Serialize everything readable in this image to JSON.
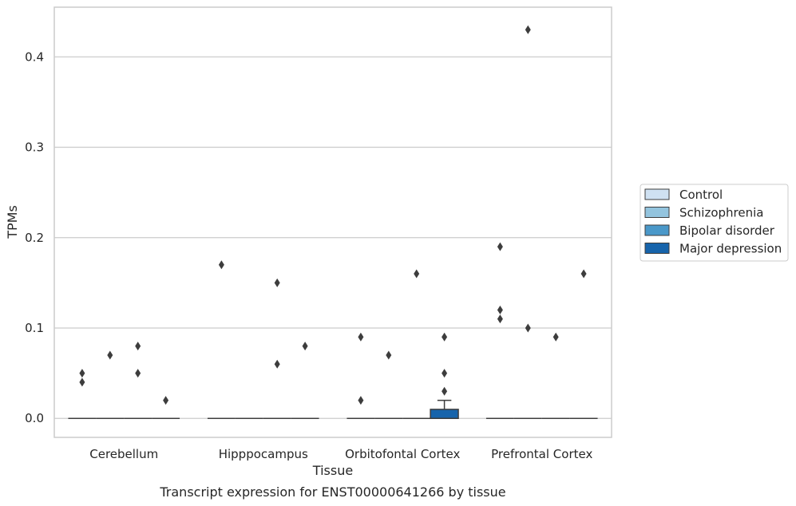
{
  "chart_data": {
    "type": "box",
    "title": "",
    "caption": "Transcript expression for ENST00000641266 by tissue",
    "xlabel": "Tissue",
    "ylabel": "TPMs",
    "ylim": [
      -0.021,
      0.455
    ],
    "yticks": [
      0.0,
      0.1,
      0.2,
      0.3,
      0.4
    ],
    "ytick_labels": [
      "0.0",
      "0.1",
      "0.2",
      "0.3",
      "0.4"
    ],
    "grid": "horizontal",
    "legend_position": "right",
    "categories": [
      "Cerebellum",
      "Hipppocampus",
      "Orbitofontal Cortex",
      "Prefrontal Cortex"
    ],
    "series": [
      {
        "name": "Control",
        "color": "#cfe1f2",
        "boxes": [
          {
            "q1": 0,
            "median": 0,
            "q3": 0,
            "whisker_low": 0,
            "whisker_high": 0,
            "outliers": [
              0.05,
              0.04
            ]
          },
          {
            "q1": 0,
            "median": 0,
            "q3": 0,
            "whisker_low": 0,
            "whisker_high": 0,
            "outliers": [
              0.17
            ]
          },
          {
            "q1": 0,
            "median": 0,
            "q3": 0,
            "whisker_low": 0,
            "whisker_high": 0,
            "outliers": [
              0.09,
              0.02
            ]
          },
          {
            "q1": 0,
            "median": 0,
            "q3": 0,
            "whisker_low": 0,
            "whisker_high": 0,
            "outliers": [
              0.19,
              0.12,
              0.11
            ]
          }
        ]
      },
      {
        "name": "Schizophrenia",
        "color": "#93c4de",
        "boxes": [
          {
            "q1": 0,
            "median": 0,
            "q3": 0,
            "whisker_low": 0,
            "whisker_high": 0,
            "outliers": [
              0.07
            ]
          },
          {
            "q1": 0,
            "median": 0,
            "q3": 0,
            "whisker_low": 0,
            "whisker_high": 0,
            "outliers": []
          },
          {
            "q1": 0,
            "median": 0,
            "q3": 0,
            "whisker_low": 0,
            "whisker_high": 0,
            "outliers": [
              0.07
            ]
          },
          {
            "q1": 0,
            "median": 0,
            "q3": 0,
            "whisker_low": 0,
            "whisker_high": 0,
            "outliers": [
              0.43,
              0.1
            ]
          }
        ]
      },
      {
        "name": "Bipolar disorder",
        "color": "#4a98c9",
        "boxes": [
          {
            "q1": 0,
            "median": 0,
            "q3": 0,
            "whisker_low": 0,
            "whisker_high": 0,
            "outliers": [
              0.08,
              0.05
            ]
          },
          {
            "q1": 0,
            "median": 0,
            "q3": 0,
            "whisker_low": 0,
            "whisker_high": 0,
            "outliers": [
              0.15,
              0.06
            ]
          },
          {
            "q1": 0,
            "median": 0,
            "q3": 0,
            "whisker_low": 0,
            "whisker_high": 0,
            "outliers": [
              0.16
            ]
          },
          {
            "q1": 0,
            "median": 0,
            "q3": 0,
            "whisker_low": 0,
            "whisker_high": 0,
            "outliers": [
              0.09
            ]
          }
        ]
      },
      {
        "name": "Major depression",
        "color": "#1764ab",
        "boxes": [
          {
            "q1": 0,
            "median": 0,
            "q3": 0,
            "whisker_low": 0,
            "whisker_high": 0,
            "outliers": [
              0.02
            ]
          },
          {
            "q1": 0,
            "median": 0,
            "q3": 0,
            "whisker_low": 0,
            "whisker_high": 0,
            "outliers": [
              0.08
            ]
          },
          {
            "q1": 0,
            "median": 0,
            "q3": 0.01,
            "whisker_low": 0,
            "whisker_high": 0.02,
            "outliers": [
              0.09,
              0.05,
              0.03
            ]
          },
          {
            "q1": 0,
            "median": 0,
            "q3": 0,
            "whisker_low": 0,
            "whisker_high": 0,
            "outliers": [
              0.16
            ]
          }
        ]
      }
    ]
  }
}
